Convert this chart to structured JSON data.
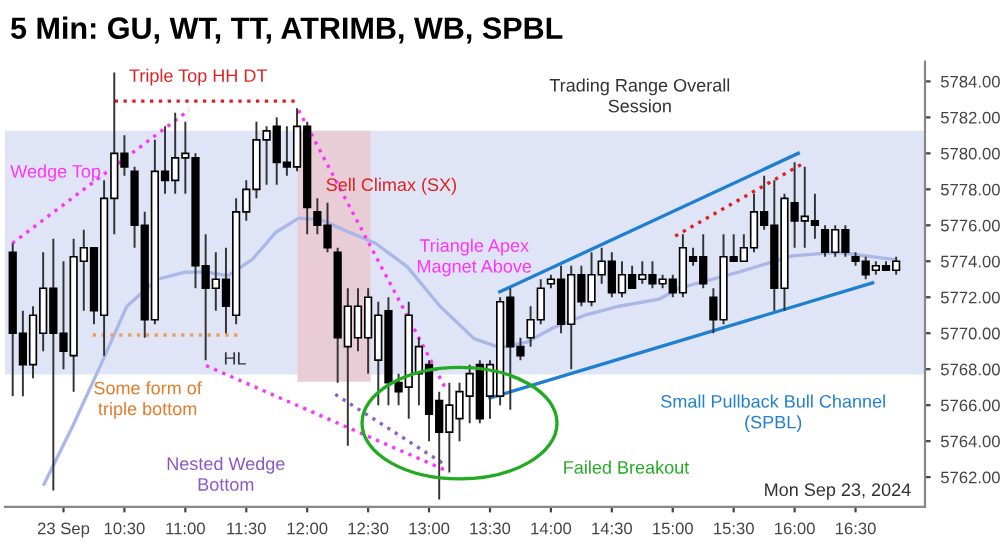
{
  "chart_data": {
    "type": "candlestick",
    "title": "5 Min: GU, WT, TT, ATRIMB, WB, SPBL",
    "x": [
      9.5833,
      9.6667,
      9.75,
      9.8333,
      9.9167,
      10,
      10.0833,
      10.1667,
      10.25,
      10.3333,
      10.4167,
      10.5,
      10.5833,
      10.6667,
      10.75,
      10.8333,
      10.9167,
      11,
      11.0833,
      11.1667,
      11.25,
      11.3333,
      11.4167,
      11.5,
      11.5833,
      11.6667,
      11.75,
      11.8333,
      11.9167,
      12,
      12.0833,
      12.1667,
      12.25,
      12.3333,
      12.4167,
      12.5,
      12.5833,
      12.6667,
      12.75,
      12.8333,
      12.9167,
      13,
      13.0833,
      13.1667,
      13.25,
      13.3333,
      13.4167,
      13.5,
      13.5833,
      13.6667,
      13.75,
      13.8333,
      13.9167,
      14,
      14.0833,
      14.1667,
      14.25,
      14.3333,
      14.4167,
      14.5,
      14.5833,
      14.6667,
      14.75,
      14.8333,
      14.9167,
      15,
      15.0833,
      15.1667,
      15.25,
      15.3333,
      15.4167,
      15.5,
      15.5833,
      15.6667,
      15.75,
      15.8333,
      15.9167,
      16,
      16.0833,
      16.1667,
      16.25,
      16.3333,
      16.4167,
      16.5,
      16.5833,
      16.6667,
      16.75,
      16.8333
    ],
    "ohlc": [
      [
        5774.5,
        5775,
        5766.5,
        5770
      ],
      [
        5770,
        5771.25,
        5766.5,
        5768.25
      ],
      [
        5768.25,
        5771.5,
        5767.5,
        5771
      ],
      [
        5770,
        5774.5,
        5769,
        5772.5
      ],
      [
        5772.5,
        5775.25,
        5761.25,
        5770
      ],
      [
        5770,
        5774,
        5768,
        5769
      ],
      [
        5768.75,
        5775.25,
        5766.75,
        5774.25
      ],
      [
        5774,
        5775.75,
        5771.25,
        5774.75
      ],
      [
        5774.75,
        5774.75,
        5770.5,
        5771.25
      ],
      [
        5771,
        5778.5,
        5768.75,
        5777.5
      ],
      [
        5777.5,
        5784.5,
        5775.5,
        5780
      ],
      [
        5780,
        5781,
        5778.75,
        5779.25
      ],
      [
        5779,
        5779.25,
        5774.75,
        5776
      ],
      [
        5776,
        5776.75,
        5769.75,
        5770.75
      ],
      [
        5770.75,
        5780.75,
        5770.5,
        5779
      ],
      [
        5779,
        5781.5,
        5777.75,
        5778.5
      ],
      [
        5778.5,
        5782.25,
        5777.75,
        5779.75
      ],
      [
        5779.75,
        5781.75,
        5777.75,
        5780
      ],
      [
        5779.75,
        5780,
        5772.5,
        5773.75
      ],
      [
        5773.75,
        5775.5,
        5768.5,
        5772.5
      ],
      [
        5772.5,
        5774.5,
        5771.25,
        5773
      ],
      [
        5773,
        5774.75,
        5770,
        5771.5
      ],
      [
        5771,
        5777.5,
        5770.5,
        5776.75
      ],
      [
        5776.75,
        5778.5,
        5776.25,
        5778
      ],
      [
        5778,
        5781.75,
        5777.5,
        5780.75
      ],
      [
        5780.75,
        5781.5,
        5778.25,
        5781.25
      ],
      [
        5781.5,
        5782,
        5778.25,
        5779.5
      ],
      [
        5779.5,
        5781.5,
        5778.75,
        5779.25
      ],
      [
        5779.25,
        5782.5,
        5779,
        5781.5
      ],
      [
        5781.5,
        5781.75,
        5775.5,
        5777
      ],
      [
        5776.75,
        5777.5,
        5775.5,
        5776
      ],
      [
        5776,
        5777.25,
        5774.5,
        5774.75
      ],
      [
        5774.5,
        5774.75,
        5767.25,
        5769.75
      ],
      [
        5769.25,
        5772.5,
        5763.75,
        5771.5
      ],
      [
        5769.75,
        5772.5,
        5769,
        5771.5
      ],
      [
        5769.75,
        5772.5,
        5767.75,
        5772
      ],
      [
        5768.5,
        5771.75,
        5766,
        5771
      ],
      [
        5771.25,
        5772,
        5766,
        5767.25
      ],
      [
        5767.25,
        5767.75,
        5766,
        5766.75
      ],
      [
        5767,
        5771.75,
        5765.25,
        5771
      ],
      [
        5767.75,
        5769.75,
        5766,
        5769.25
      ],
      [
        5768.25,
        5768.5,
        5764,
        5765.5
      ],
      [
        5766.25,
        5766.75,
        5760.75,
        5764.5
      ],
      [
        5764.5,
        5767.25,
        5762.25,
        5766
      ],
      [
        5765.25,
        5767.25,
        5764,
        5766.75
      ],
      [
        5766.5,
        5768.25,
        5765,
        5767.75
      ],
      [
        5768.25,
        5768.5,
        5765,
        5765.25
      ],
      [
        5766.5,
        5768.5,
        5765.25,
        5768.25
      ],
      [
        5766.5,
        5772,
        5766,
        5771.75
      ],
      [
        5772,
        5772.5,
        5765.75,
        5769.25
      ],
      [
        5769.25,
        5769.75,
        5768.5,
        5768.75
      ],
      [
        5769.75,
        5771.5,
        5769.25,
        5770.75
      ],
      [
        5770.75,
        5773,
        5770.5,
        5772.5
      ],
      [
        5772.75,
        5773.25,
        5772.5,
        5773
      ],
      [
        5773,
        5773.75,
        5770,
        5770.5
      ],
      [
        5770.5,
        5773.75,
        5768,
        5773.25
      ],
      [
        5773.25,
        5773.75,
        5771.5,
        5771.75
      ],
      [
        5771.75,
        5774.5,
        5771.5,
        5773.25
      ],
      [
        5773.25,
        5774.75,
        5772.75,
        5774
      ],
      [
        5774,
        5774.5,
        5772,
        5772.25
      ],
      [
        5772.25,
        5774,
        5772,
        5773.25
      ],
      [
        5773.25,
        5773.75,
        5772.5,
        5772.5
      ],
      [
        5773,
        5774,
        5772.75,
        5773.25
      ],
      [
        5773.25,
        5774,
        5772.5,
        5772.75
      ],
      [
        5772.75,
        5773.25,
        5772.5,
        5773
      ],
      [
        5773,
        5773.25,
        5772,
        5772.25
      ],
      [
        5772.25,
        5775.5,
        5772,
        5774.75
      ],
      [
        5774.25,
        5774.75,
        5773.75,
        5774
      ],
      [
        5774.25,
        5775.5,
        5772.5,
        5772.75
      ],
      [
        5772,
        5772.5,
        5770,
        5770.75
      ],
      [
        5770.75,
        5775.5,
        5770.5,
        5774.25
      ],
      [
        5774.25,
        5775.5,
        5774,
        5774
      ],
      [
        5774,
        5775.5,
        5774,
        5774.75
      ],
      [
        5774.75,
        5777.75,
        5774.5,
        5776.75
      ],
      [
        5776.75,
        5778.75,
        5775.75,
        5776
      ],
      [
        5776,
        5778.5,
        5771.25,
        5772.5
      ],
      [
        5772.5,
        5777.75,
        5771.25,
        5777.5
      ],
      [
        5777.25,
        5779.5,
        5774.75,
        5776.25
      ],
      [
        5776.25,
        5779.25,
        5774.75,
        5776.5
      ],
      [
        5776.25,
        5777.75,
        5775.25,
        5776
      ],
      [
        5775.75,
        5776,
        5774.25,
        5774.5
      ],
      [
        5774.5,
        5776,
        5774.25,
        5775.75
      ],
      [
        5775.75,
        5776,
        5774.25,
        5774.5
      ],
      [
        5774.25,
        5774.5,
        5773.75,
        5774
      ],
      [
        5774,
        5774.25,
        5773,
        5773.25
      ],
      [
        5773.5,
        5774,
        5773.25,
        5773.75
      ],
      [
        5773.75,
        5774,
        5773.5,
        5773.5
      ],
      [
        5773.5,
        5774.25,
        5773.25,
        5774
      ]
    ],
    "series": [
      {
        "type": "line",
        "color": "#aab8e8",
        "line_style": "solid",
        "x": [
          9.84,
          10.08,
          10.33,
          10.52,
          10.77,
          11.0,
          11.17,
          11.35,
          11.55,
          11.74,
          11.93,
          12.12,
          12.28,
          12.56,
          12.82,
          13.09,
          13.37,
          13.58,
          13.8,
          14.02,
          14.28,
          14.56,
          14.89,
          15.05,
          15.54,
          15.98,
          16.35,
          16.81
        ],
        "values": [
          5761.6,
          5764.9,
          5768.6,
          5771.5,
          5773,
          5773.4,
          5773.4,
          5773.2,
          5774.1,
          5775.6,
          5776.4,
          5776.3,
          5775.8,
          5775,
          5773.7,
          5771.5,
          5769.7,
          5769.2,
          5769.5,
          5770.3,
          5771,
          5771.5,
          5771.9,
          5772.5,
          5773.4,
          5774.3,
          5774.5,
          5774.1
        ]
      },
      {
        "type": "line",
        "color": "#ff33ff",
        "line_style": "dotted",
        "x": [
          9.58,
          11.03
        ],
        "values": [
          5775,
          5782.4
        ]
      },
      {
        "type": "line",
        "color": "#ff33ff",
        "line_style": "dotted",
        "x": [
          11.93,
          13.13
        ],
        "values": [
          5782.4,
          5767
        ]
      },
      {
        "type": "line",
        "color": "#ff33ff",
        "line_style": "dotted",
        "x": [
          11.17,
          13.13
        ],
        "values": [
          5768.2,
          5762.4
        ]
      },
      {
        "type": "line",
        "color": "#8866cc",
        "line_style": "dotted",
        "x": [
          12.23,
          13.13
        ],
        "values": [
          5766.6,
          5762.7
        ]
      },
      {
        "type": "line",
        "color": "#e02020",
        "line_style": "dotted",
        "x": [
          10.42,
          11.93
        ],
        "values": [
          5782.9,
          5782.9
        ]
      },
      {
        "type": "line",
        "color": "#e02020",
        "line_style": "dotted",
        "x": [
          15.02,
          16.06
        ],
        "values": [
          5775.4,
          5779.4
        ]
      },
      {
        "type": "line",
        "color": "#e8a060",
        "line_style": "dotted",
        "x": [
          10.24,
          11.47
        ],
        "values": [
          5769.9,
          5769.9
        ]
      },
      {
        "type": "line",
        "color": "#1f7fd0",
        "line_style": "solid",
        "x": [
          13.58,
          16.03
        ],
        "values": [
          5772.3,
          5780
        ]
      },
      {
        "type": "line",
        "color": "#1f7fd0",
        "line_style": "solid",
        "x": [
          13.5,
          16.64
        ],
        "values": [
          5766.4,
          5772.8
        ]
      }
    ],
    "bands": [
      {
        "axis": "y",
        "from": 5767.7,
        "to": 5781.25,
        "color": "#dfe5f7"
      },
      {
        "axis": "x",
        "from": 11.92,
        "to": 12.52,
        "color": "#e9cdd6"
      }
    ],
    "annotations": [
      "Triple Top HH DT",
      "Wedge Top",
      "Sell Climax (SX)",
      "Triangle Apex\nMagnet Above",
      "Trading Range Overall\nSession",
      "HL",
      "Some form of\ntriple bottom",
      "Nested Wedge\nBottom",
      "Failed Breakout",
      "Small Pullback Bull Channel\n(SPBL)",
      "Mon Sep 23, 2024"
    ],
    "xlim": [
      9.52,
      17.07
    ],
    "ylim": [
      5760.35,
      5785.1
    ],
    "xticks": [
      {
        "value": 10,
        "label": "23 Sep"
      },
      {
        "value": 10.5,
        "label": "10:30"
      },
      {
        "value": 11,
        "label": "11:00"
      },
      {
        "value": 11.5,
        "label": "11:30"
      },
      {
        "value": 12,
        "label": "12:00"
      },
      {
        "value": 12.5,
        "label": "12:30"
      },
      {
        "value": 13,
        "label": "13:00"
      },
      {
        "value": 13.5,
        "label": "13:30"
      },
      {
        "value": 14,
        "label": "14:00"
      },
      {
        "value": 14.5,
        "label": "14:30"
      },
      {
        "value": 15,
        "label": "15:00"
      },
      {
        "value": 15.5,
        "label": "15:30"
      },
      {
        "value": 16,
        "label": "16:00"
      },
      {
        "value": 16.5,
        "label": "16:30"
      }
    ],
    "yticks": [
      {
        "value": 5762,
        "label": "5762.00"
      },
      {
        "value": 5764,
        "label": "5764.00"
      },
      {
        "value": 5766,
        "label": "5766.00"
      },
      {
        "value": 5768,
        "label": "5768.00"
      },
      {
        "value": 5770,
        "label": "5770.00"
      },
      {
        "value": 5772,
        "label": "5772.00"
      },
      {
        "value": 5774,
        "label": "5774.00"
      },
      {
        "value": 5776,
        "label": "5776.00"
      },
      {
        "value": 5778,
        "label": "5778.00"
      },
      {
        "value": 5780,
        "label": "5780.00"
      },
      {
        "value": 5782,
        "label": "5782.00"
      },
      {
        "value": 5784,
        "label": "5784.00"
      }
    ],
    "grid": false
  }
}
